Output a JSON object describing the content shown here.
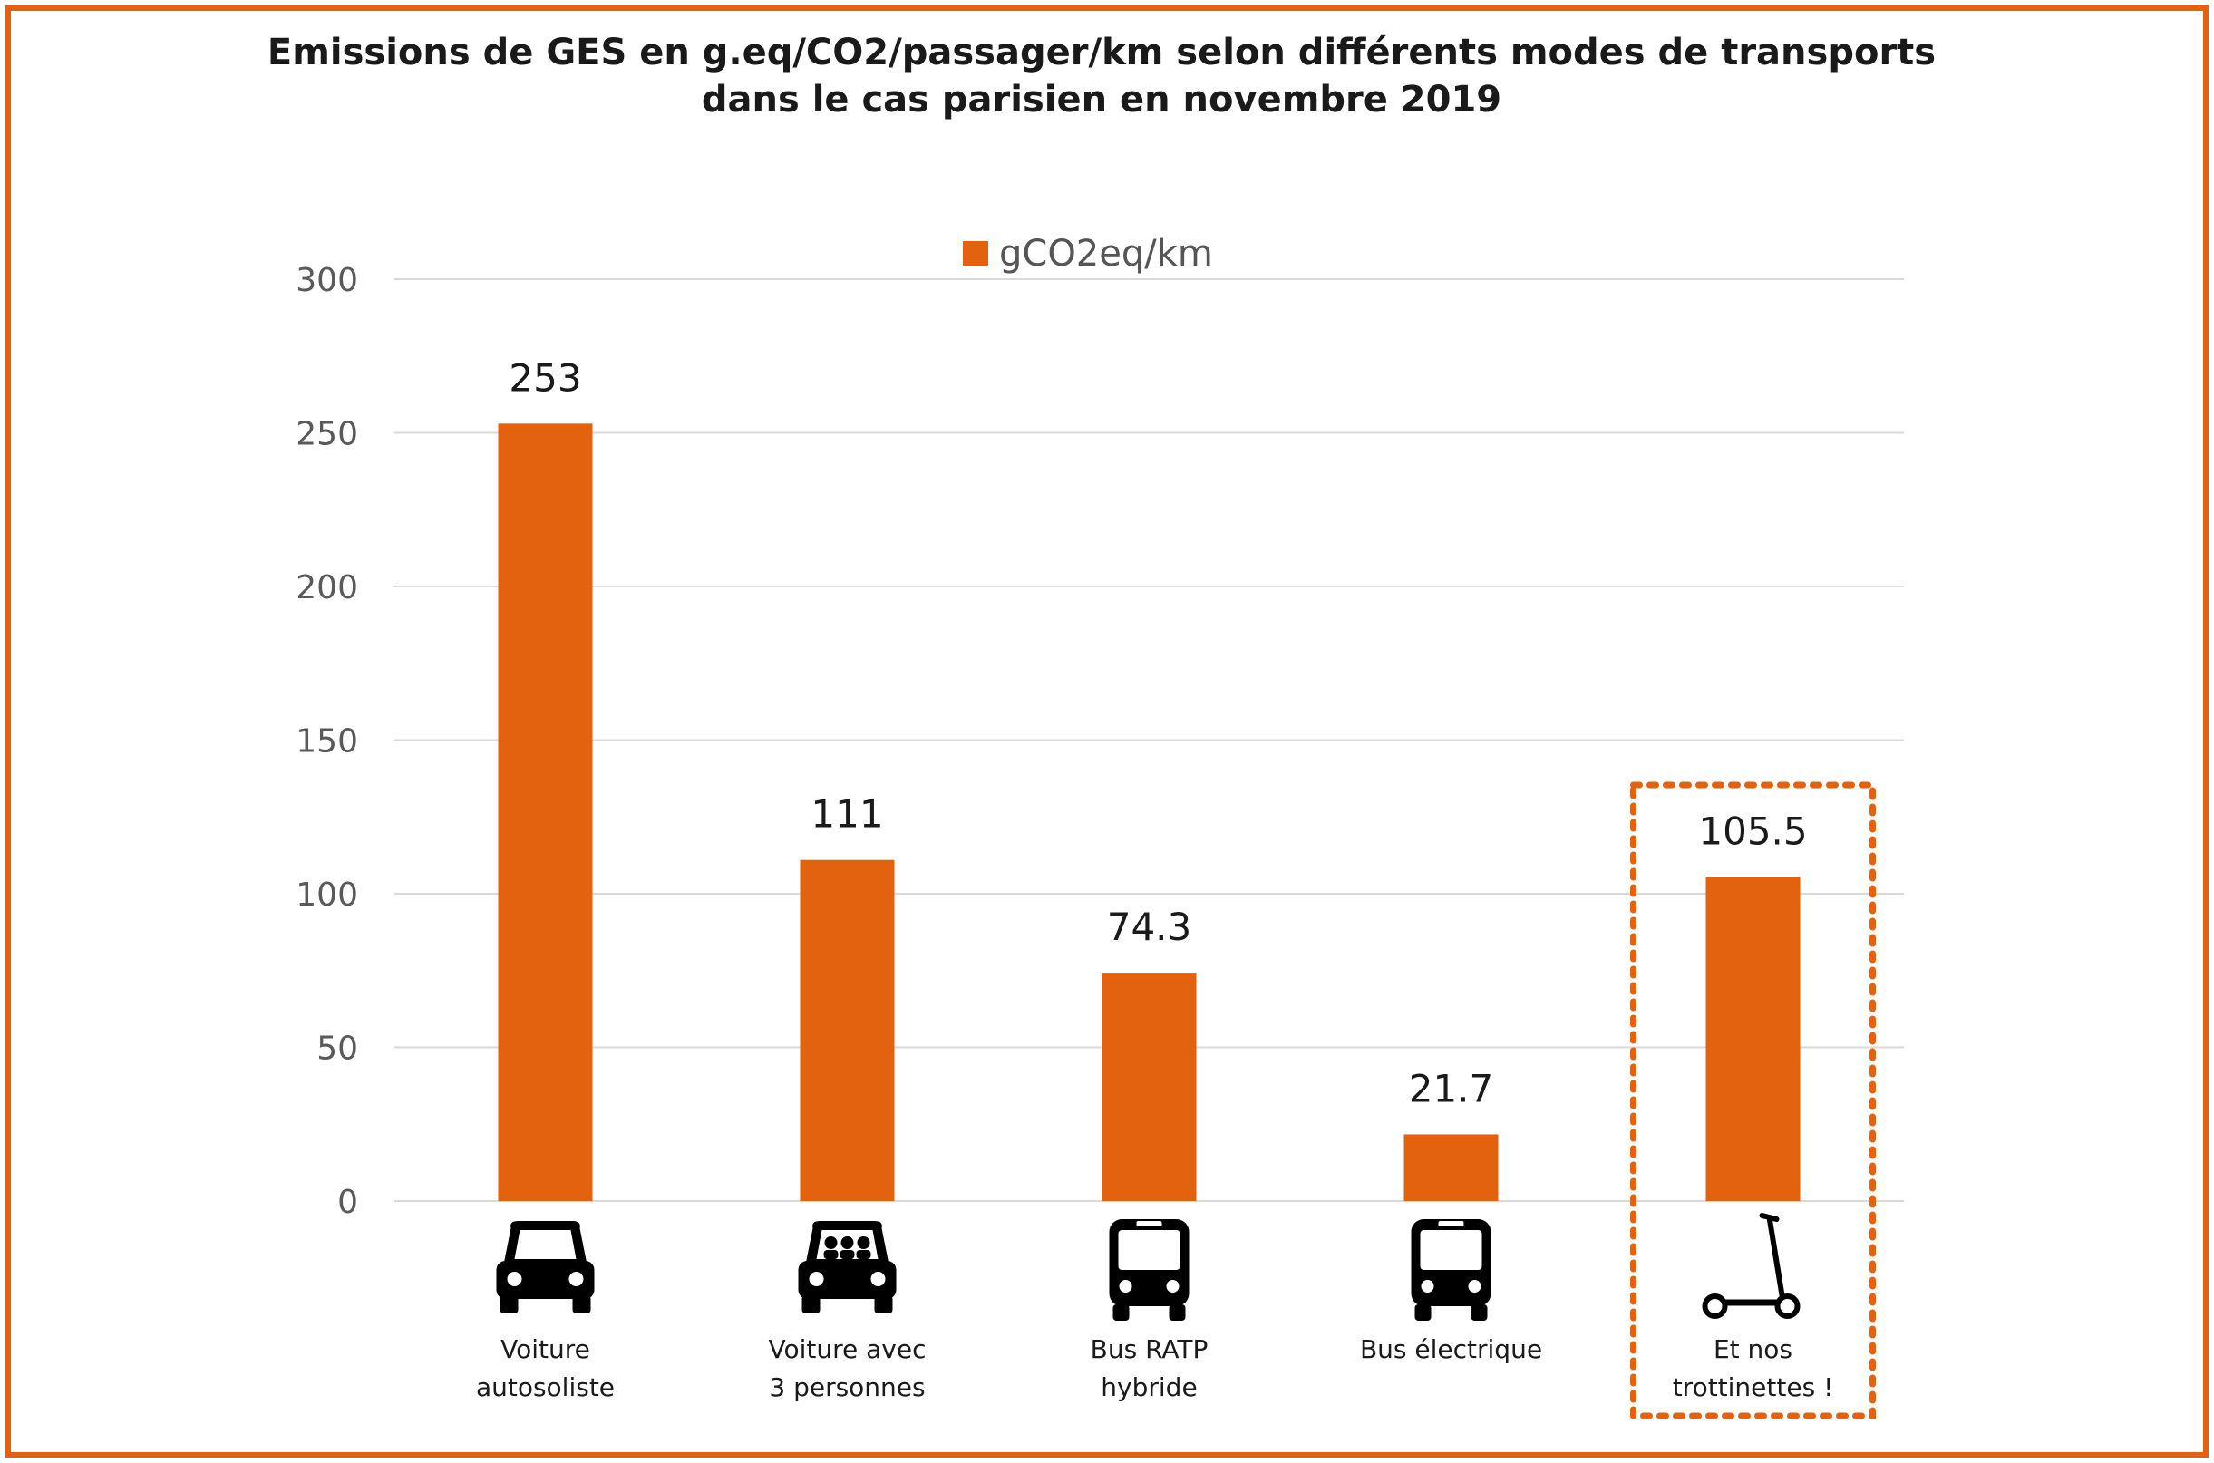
{
  "colors": {
    "accent": "#e2620f",
    "grid": "#d9d9d9",
    "text": "#1a1a1a"
  },
  "chart_data": {
    "type": "bar",
    "title_lines": [
      "Emissions de GES en g.eq/CO2/passager/km selon différents modes de transports",
      "dans le cas parisien en novembre 2019"
    ],
    "legend": "gCO2eq/km",
    "legend_position": "top-center",
    "ylim": [
      0,
      300
    ],
    "yticks": [
      "0",
      "50",
      "100",
      "150",
      "200",
      "250",
      "300"
    ],
    "grid": true,
    "categories": [
      {
        "lines": [
          "Voiture",
          "autosoliste"
        ],
        "icon": "car-icon"
      },
      {
        "lines": [
          "Voiture avec",
          "3 personnes"
        ],
        "icon": "car-with-passengers-icon"
      },
      {
        "lines": [
          "Bus RATP",
          "hybride"
        ],
        "icon": "bus-icon"
      },
      {
        "lines": [
          "Bus électrique"
        ],
        "icon": "bus-icon"
      },
      {
        "lines": [
          "Et nos",
          "trottinettes !"
        ],
        "icon": "scooter-icon",
        "highlighted": true
      }
    ],
    "values": [
      253,
      111,
      74.3,
      21.7,
      105.5
    ],
    "value_labels": [
      "253",
      "111",
      "74.3",
      "21.7",
      "105.5"
    ]
  }
}
